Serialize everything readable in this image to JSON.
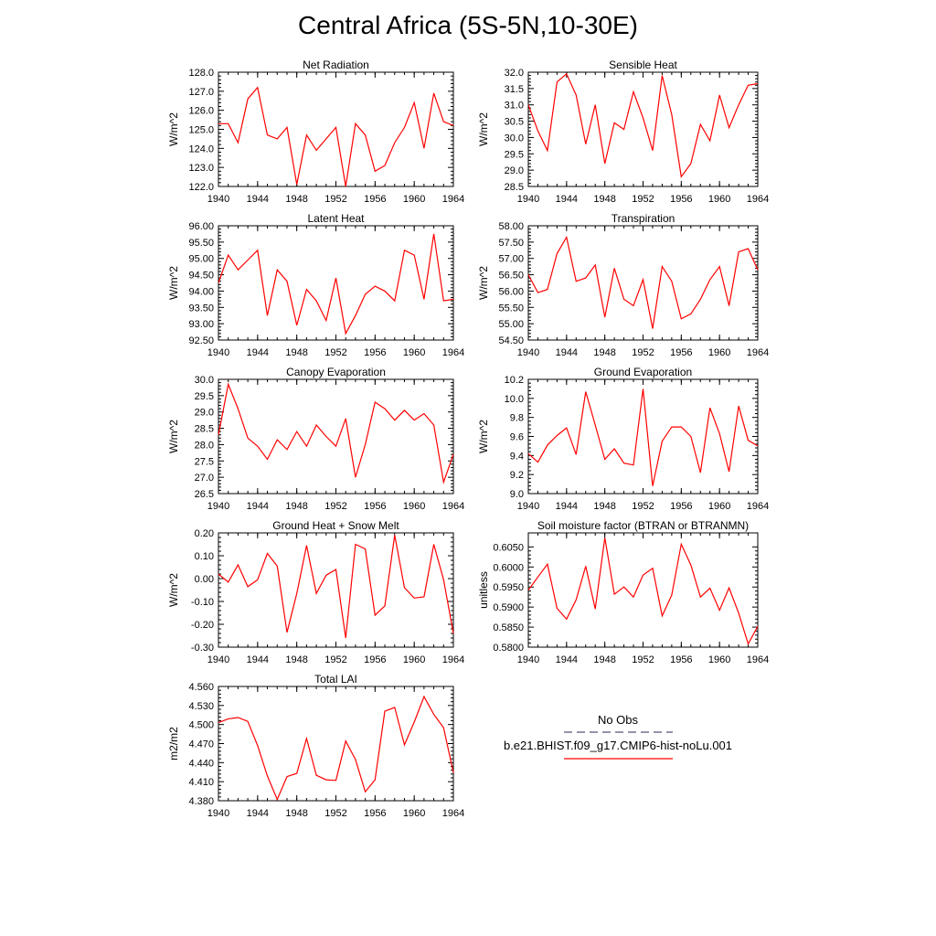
{
  "page_title": "Central Africa (5S-5N,10-30E)",
  "x_tick_labels": [
    "1940",
    "1944",
    "1948",
    "1952",
    "1956",
    "1960",
    "1964"
  ],
  "legend": {
    "items": [
      {
        "label": "No Obs",
        "color": "#555577",
        "dash": true
      },
      {
        "label": "b.e21.BHIST.f09_g17.CMIP6-hist-noLu.001",
        "color": "#ff0000",
        "dash": false
      }
    ]
  },
  "line_color": "#ff0000",
  "chart_data": [
    {
      "type": "line",
      "title": "Net Radiation",
      "ylabel": "W/m^2",
      "x": [
        1940,
        1941,
        1942,
        1943,
        1944,
        1945,
        1946,
        1947,
        1948,
        1949,
        1950,
        1951,
        1952,
        1953,
        1954,
        1955,
        1956,
        1957,
        1958,
        1959,
        1960,
        1961,
        1962,
        1963,
        1964
      ],
      "values": [
        125.3,
        125.3,
        124.3,
        126.6,
        127.2,
        124.7,
        124.5,
        125.1,
        122.1,
        124.7,
        123.9,
        124.5,
        125.1,
        122.0,
        125.3,
        124.7,
        122.8,
        123.1,
        124.3,
        125.1,
        126.4,
        124.0,
        126.9,
        125.4,
        125.2
      ],
      "xlim": [
        1940,
        1964
      ],
      "ylim": [
        122.0,
        128.0
      ],
      "yticks": [
        "122.0",
        "123.0",
        "124.0",
        "125.0",
        "126.0",
        "127.0",
        "128.0"
      ]
    },
    {
      "type": "line",
      "title": "Sensible Heat",
      "ylabel": "W/m^2",
      "x": [
        1940,
        1941,
        1942,
        1943,
        1944,
        1945,
        1946,
        1947,
        1948,
        1949,
        1950,
        1951,
        1952,
        1953,
        1954,
        1955,
        1956,
        1957,
        1958,
        1959,
        1960,
        1961,
        1962,
        1963,
        1964
      ],
      "values": [
        31.0,
        30.2,
        29.6,
        31.7,
        31.95,
        31.3,
        29.8,
        31.0,
        29.2,
        30.45,
        30.25,
        31.4,
        30.6,
        29.6,
        31.9,
        30.7,
        28.8,
        29.2,
        30.4,
        29.9,
        31.3,
        30.3,
        31.0,
        31.6,
        31.65
      ],
      "xlim": [
        1940,
        1964
      ],
      "ylim": [
        28.5,
        32.0
      ],
      "yticks": [
        "28.5",
        "29.0",
        "29.5",
        "30.0",
        "30.5",
        "31.0",
        "31.5",
        "32.0"
      ]
    },
    {
      "type": "line",
      "title": "Latent Heat",
      "ylabel": "W/m^2",
      "x": [
        1940,
        1941,
        1942,
        1943,
        1944,
        1945,
        1946,
        1947,
        1948,
        1949,
        1950,
        1951,
        1952,
        1953,
        1954,
        1955,
        1956,
        1957,
        1958,
        1959,
        1960,
        1961,
        1962,
        1963,
        1964
      ],
      "values": [
        94.25,
        95.1,
        94.65,
        94.95,
        95.25,
        93.25,
        94.65,
        94.3,
        92.95,
        94.05,
        93.7,
        93.1,
        94.4,
        92.7,
        93.25,
        93.9,
        94.15,
        94.0,
        93.7,
        95.25,
        95.1,
        93.75,
        95.75,
        93.7,
        93.75
      ],
      "xlim": [
        1940,
        1964
      ],
      "ylim": [
        92.5,
        96.0
      ],
      "yticks": [
        "92.50",
        "93.00",
        "93.50",
        "94.00",
        "94.50",
        "95.00",
        "95.50",
        "96.00"
      ]
    },
    {
      "type": "line",
      "title": "Transpiration",
      "ylabel": "W/m^2",
      "x": [
        1940,
        1941,
        1942,
        1943,
        1944,
        1945,
        1946,
        1947,
        1948,
        1949,
        1950,
        1951,
        1952,
        1953,
        1954,
        1955,
        1956,
        1957,
        1958,
        1959,
        1960,
        1961,
        1962,
        1963,
        1964
      ],
      "values": [
        56.5,
        55.95,
        56.05,
        57.15,
        57.65,
        56.3,
        56.4,
        56.8,
        55.2,
        56.7,
        55.75,
        55.55,
        56.35,
        54.85,
        56.75,
        56.3,
        55.15,
        55.3,
        55.75,
        56.35,
        56.75,
        55.55,
        57.2,
        57.3,
        56.65
      ],
      "xlim": [
        1940,
        1964
      ],
      "ylim": [
        54.5,
        58.0
      ],
      "yticks": [
        "54.50",
        "55.00",
        "55.50",
        "56.00",
        "56.50",
        "57.00",
        "57.50",
        "58.00"
      ]
    },
    {
      "type": "line",
      "title": "Canopy Evaporation",
      "ylabel": "W/m^2",
      "x": [
        1940,
        1941,
        1942,
        1943,
        1944,
        1945,
        1946,
        1947,
        1948,
        1949,
        1950,
        1951,
        1952,
        1953,
        1954,
        1955,
        1956,
        1957,
        1958,
        1959,
        1960,
        1961,
        1962,
        1963,
        1964
      ],
      "values": [
        28.3,
        29.85,
        29.1,
        28.2,
        27.95,
        27.55,
        28.15,
        27.85,
        28.4,
        27.95,
        28.6,
        28.25,
        27.95,
        28.8,
        27.0,
        28.0,
        29.3,
        29.1,
        28.75,
        29.05,
        28.75,
        28.95,
        28.6,
        26.85,
        27.7
      ],
      "xlim": [
        1940,
        1964
      ],
      "ylim": [
        26.5,
        30.0
      ],
      "yticks": [
        "26.5",
        "27.0",
        "27.5",
        "28.0",
        "28.5",
        "29.0",
        "29.5",
        "30.0"
      ]
    },
    {
      "type": "line",
      "title": "Ground Evaporation",
      "ylabel": "W/m^2",
      "x": [
        1940,
        1941,
        1942,
        1943,
        1944,
        1945,
        1946,
        1947,
        1948,
        1949,
        1950,
        1951,
        1952,
        1953,
        1954,
        1955,
        1956,
        1957,
        1958,
        1959,
        1960,
        1961,
        1962,
        1963,
        1964
      ],
      "values": [
        9.42,
        9.33,
        9.51,
        9.61,
        9.69,
        9.41,
        10.07,
        9.72,
        9.36,
        9.47,
        9.32,
        9.3,
        10.1,
        9.08,
        9.55,
        9.7,
        9.7,
        9.6,
        9.22,
        9.9,
        9.63,
        9.23,
        9.92,
        9.56,
        9.5
      ],
      "xlim": [
        1940,
        1964
      ],
      "ylim": [
        9.0,
        10.2
      ],
      "yticks": [
        "9.0",
        "9.2",
        "9.4",
        "9.6",
        "9.8",
        "10.0",
        "10.2"
      ]
    },
    {
      "type": "line",
      "title": "Ground Heat + Snow Melt",
      "ylabel": "W/m^2",
      "x": [
        1940,
        1941,
        1942,
        1943,
        1944,
        1945,
        1946,
        1947,
        1948,
        1949,
        1950,
        1951,
        1952,
        1953,
        1954,
        1955,
        1956,
        1957,
        1958,
        1959,
        1960,
        1961,
        1962,
        1963,
        1964
      ],
      "values": [
        0.02,
        -0.015,
        0.06,
        -0.035,
        -0.005,
        0.11,
        0.055,
        -0.235,
        -0.065,
        0.145,
        -0.065,
        0.015,
        0.04,
        -0.26,
        0.15,
        0.13,
        -0.16,
        -0.12,
        0.19,
        -0.04,
        -0.085,
        -0.08,
        0.15,
        -0.005,
        -0.24
      ],
      "xlim": [
        1940,
        1964
      ],
      "ylim": [
        -0.3,
        0.2
      ],
      "yticks": [
        "-0.30",
        "-0.20",
        "-0.10",
        "0.00",
        "0.10",
        "0.20"
      ]
    },
    {
      "type": "line",
      "title": "Soil moisture factor (BTRAN or BTRANMN)",
      "ylabel": "unitless",
      "x": [
        1940,
        1941,
        1942,
        1943,
        1944,
        1945,
        1946,
        1947,
        1948,
        1949,
        1950,
        1951,
        1952,
        1953,
        1954,
        1955,
        1956,
        1957,
        1958,
        1959,
        1960,
        1961,
        1962,
        1963,
        1964
      ],
      "values": [
        0.5942,
        0.5975,
        0.6007,
        0.5897,
        0.587,
        0.5918,
        0.6002,
        0.5895,
        0.6073,
        0.5932,
        0.595,
        0.5925,
        0.598,
        0.5997,
        0.5878,
        0.593,
        0.6057,
        0.6005,
        0.5925,
        0.5947,
        0.5892,
        0.5948,
        0.5885,
        0.5808,
        0.5852
      ],
      "xlim": [
        1940,
        1964
      ],
      "ylim": [
        0.58,
        0.6085
      ],
      "yticks": [
        "0.5800",
        "0.5850",
        "0.5900",
        "0.5950",
        "0.6000",
        "0.6050"
      ]
    },
    {
      "type": "line",
      "title": "Total LAI",
      "ylabel": "m2/m2",
      "x": [
        1940,
        1941,
        1942,
        1943,
        1944,
        1945,
        1946,
        1947,
        1948,
        1949,
        1950,
        1951,
        1952,
        1953,
        1954,
        1955,
        1956,
        1957,
        1958,
        1959,
        1960,
        1961,
        1962,
        1963,
        1964
      ],
      "values": [
        4.503,
        4.509,
        4.511,
        4.505,
        4.467,
        4.419,
        4.382,
        4.418,
        4.423,
        4.478,
        4.42,
        4.413,
        4.412,
        4.474,
        4.445,
        4.394,
        4.413,
        4.521,
        4.527,
        4.468,
        4.504,
        4.544,
        4.516,
        4.495,
        4.424
      ],
      "xlim": [
        1940,
        1964
      ],
      "ylim": [
        4.38,
        4.56
      ],
      "yticks": [
        "4.380",
        "4.410",
        "4.440",
        "4.470",
        "4.500",
        "4.530",
        "4.560"
      ]
    }
  ]
}
